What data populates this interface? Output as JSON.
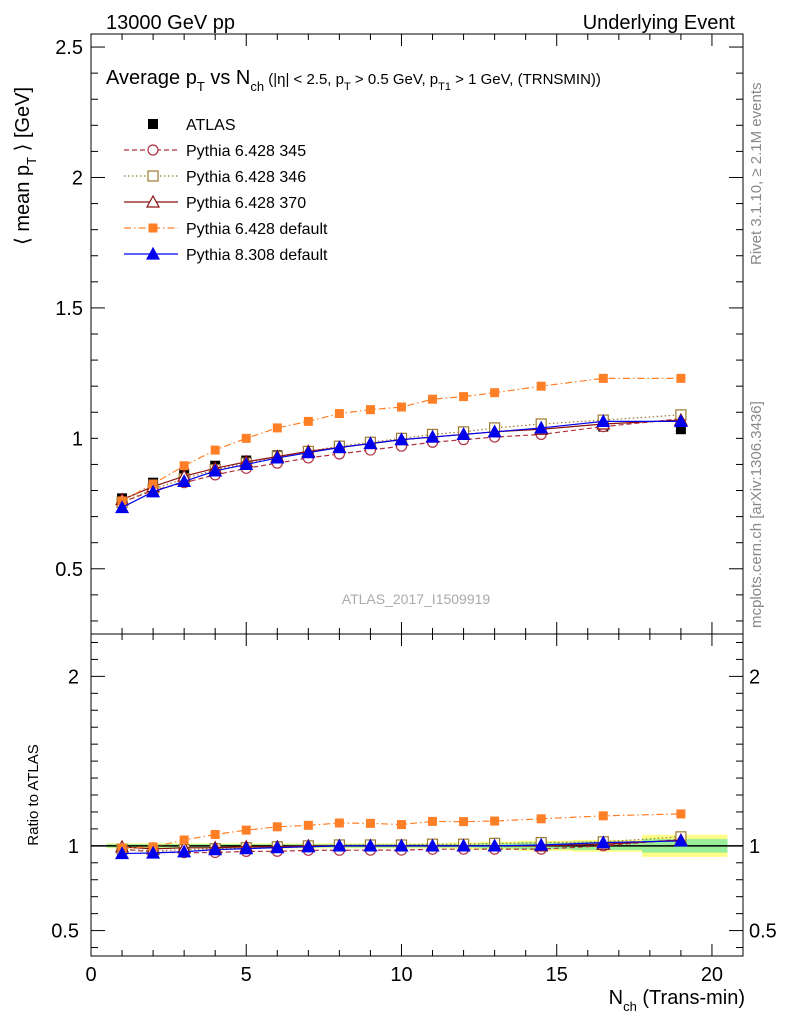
{
  "header": {
    "left": "13000 GeV pp",
    "right": "Underlying Event"
  },
  "side": {
    "rivet": "Rivet 3.1.10, ≥ 2.1M events",
    "mcplots": "mcplots.cern.ch [arXiv:1306.3436]"
  },
  "title": {
    "p1": "Average p",
    "p1sub": "T",
    "p2": " vs N",
    "p2sub": "ch",
    "p3": " (|η| < 2.5, p",
    "p3sub": "T",
    "p4": " > 0.5 GeV, p",
    "p4sub": "T1",
    "p5": " > 1 GeV, (TRNSMIN))"
  },
  "watermark": "ATLAS_2017_I1509919",
  "axes": {
    "ylabel_pre": "⟨ mean p",
    "ylabel_sub": "T",
    "ylabel_post": " ⟩ [GeV]",
    "ratio_ylabel": "Ratio to ATLAS",
    "xlabel_pre": "N",
    "xlabel_sub": "ch",
    "xlabel_post": " (Trans-min)"
  },
  "chart_data": {
    "type": "line",
    "xlim": [
      0,
      21
    ],
    "ylim": [
      0.25,
      2.55
    ],
    "ratio_ylim": [
      0.35,
      2.25
    ],
    "x_ticks": [
      0,
      5,
      10,
      15,
      20
    ],
    "x_tick_labels": [
      "0",
      "5",
      "10",
      "15",
      "20"
    ],
    "y_ticks": [
      0.5,
      1,
      1.5,
      2,
      2.5
    ],
    "y_tick_labels": [
      "0.5",
      "1",
      "1.5",
      "2",
      "2.5"
    ],
    "ratio_y_ticks": [
      0.5,
      1,
      2
    ],
    "ratio_y_tick_labels": [
      "0.5",
      "1",
      "2"
    ],
    "x": [
      1,
      2,
      3,
      4,
      5,
      6,
      7,
      8,
      9,
      10,
      11,
      12,
      13,
      14.5,
      16.5,
      19
    ],
    "data_name": "ATLAS",
    "data": [
      0.77,
      0.83,
      0.865,
      0.895,
      0.915,
      0.935,
      0.95,
      0.965,
      0.98,
      0.995,
      1.005,
      1.015,
      1.025,
      1.035,
      1.045,
      1.035
    ],
    "band_inner": [
      0.01,
      0.01,
      0.01,
      0.01,
      0.01,
      0.01,
      0.01,
      0.01,
      0.01,
      0.01,
      0.01,
      0.01,
      0.015,
      0.02,
      0.025,
      0.04
    ],
    "band_outer": [
      0.015,
      0.015,
      0.015,
      0.015,
      0.015,
      0.015,
      0.015,
      0.015,
      0.015,
      0.015,
      0.015,
      0.02,
      0.025,
      0.03,
      0.035,
      0.065
    ],
    "series": [
      {
        "name": "Pythia 6.428 345",
        "color": "#b03040",
        "dash": "5,3",
        "marker": "circle-open",
        "values": [
          0.755,
          0.8,
          0.83,
          0.86,
          0.885,
          0.905,
          0.925,
          0.94,
          0.955,
          0.97,
          0.985,
          0.995,
          1.005,
          1.015,
          1.045,
          1.075
        ]
      },
      {
        "name": "Pythia 6.428 346",
        "color": "#9c7a30",
        "dash": "1.5,2.5",
        "marker": "square-open",
        "values": [
          0.755,
          0.805,
          0.845,
          0.88,
          0.905,
          0.93,
          0.95,
          0.97,
          0.985,
          1.0,
          1.015,
          1.025,
          1.04,
          1.055,
          1.07,
          1.09
        ]
      },
      {
        "name": "Pythia 6.428 370",
        "color": "#8b1010",
        "dash": "",
        "marker": "triangle-open",
        "values": [
          0.765,
          0.815,
          0.855,
          0.885,
          0.91,
          0.93,
          0.95,
          0.965,
          0.98,
          0.995,
          1.005,
          1.015,
          1.025,
          1.035,
          1.055,
          1.07
        ]
      },
      {
        "name": "Pythia 6.428 default",
        "color": "#ff7f27",
        "dash": "7,3,1.5,3",
        "marker": "square-filled",
        "values": [
          0.76,
          0.825,
          0.895,
          0.955,
          1.0,
          1.04,
          1.065,
          1.095,
          1.11,
          1.12,
          1.15,
          1.16,
          1.175,
          1.2,
          1.23,
          1.23
        ]
      },
      {
        "name": "Pythia 8.308 default",
        "color": "#0000ee",
        "dash": "",
        "marker": "triangle-filled",
        "values": [
          0.735,
          0.795,
          0.835,
          0.875,
          0.9,
          0.925,
          0.945,
          0.965,
          0.98,
          0.995,
          1.005,
          1.015,
          1.025,
          1.04,
          1.065,
          1.065
        ]
      }
    ]
  }
}
